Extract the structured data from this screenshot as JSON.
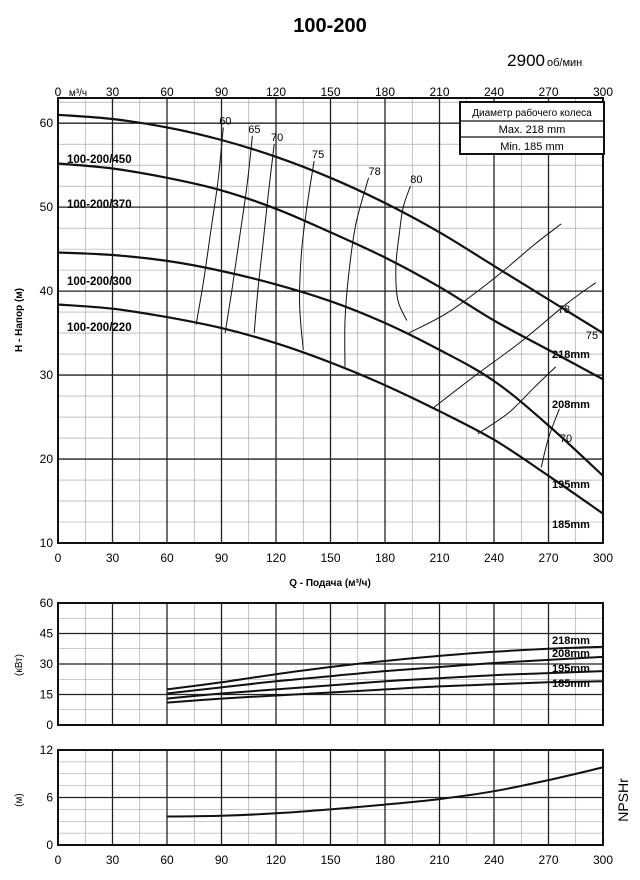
{
  "title": "100-200",
  "speed_label": "2900",
  "speed_unit": "об/мин",
  "legend_box": {
    "heading": "Диаметр рабочего колеса",
    "max": "Max. 218 mm",
    "min": "Min.  185 mm"
  },
  "top_axis_unit": "м³/ч",
  "x_axis_label": "Q - Подача (м³/ч)",
  "head_axis_label": "H - Напор (м)",
  "power_axis_label": "(кВт)",
  "npsh_axis_label": "(м)",
  "npsh_side_label": "NPSHr",
  "colors": {
    "line": "#111111",
    "grid": "#222222",
    "minor_grid": "#9a9a9a",
    "background": "#ffffff"
  },
  "chart_data": [
    {
      "type": "line",
      "name": "head",
      "x_ticks": [
        0,
        30,
        60,
        90,
        120,
        150,
        180,
        210,
        240,
        270,
        300
      ],
      "y_ticks": [
        10,
        20,
        30,
        40,
        50,
        60
      ],
      "xlim": [
        0,
        300
      ],
      "ylim": [
        10,
        63
      ],
      "grid": true,
      "series": [
        {
          "name": "218mm",
          "x": [
            0,
            30,
            60,
            90,
            120,
            150,
            180,
            210,
            240,
            270,
            300
          ],
          "y": [
            61,
            60.5,
            59.5,
            58,
            56,
            53.5,
            50.5,
            47,
            43,
            39,
            35
          ]
        },
        {
          "name": "208mm",
          "x": [
            0,
            30,
            60,
            90,
            120,
            150,
            180,
            210,
            240,
            270,
            300
          ],
          "y": [
            55.2,
            54.6,
            53.5,
            52,
            49.8,
            47,
            44,
            40.5,
            36.5,
            33,
            29.5
          ]
        },
        {
          "name": "195mm",
          "x": [
            0,
            30,
            60,
            90,
            120,
            150,
            180,
            210,
            240,
            270,
            300
          ],
          "y": [
            44.6,
            44.3,
            43.6,
            42.4,
            40.8,
            38.8,
            36.2,
            33,
            29.3,
            24,
            18
          ]
        },
        {
          "name": "185mm",
          "x": [
            0,
            30,
            60,
            90,
            120,
            150,
            180,
            210,
            240,
            270,
            300
          ],
          "y": [
            38.4,
            37.9,
            36.9,
            35.6,
            33.8,
            31.5,
            28.8,
            25.7,
            22.3,
            18,
            13.5
          ]
        }
      ],
      "impeller_labels": [
        "100-200/450",
        "100-200/370",
        "100-200/300",
        "100-200/220"
      ],
      "diameter_labels": [
        "218mm",
        "208mm",
        "195mm",
        "185mm"
      ],
      "efficiency_curves": [
        {
          "label": "60",
          "x": [
            76,
            80,
            84,
            88,
            91
          ],
          "y": [
            36,
            41,
            47,
            53,
            59.5
          ]
        },
        {
          "label": "65",
          "x": [
            92,
            96,
            100,
            104,
            107
          ],
          "y": [
            35,
            40.5,
            46.5,
            52.5,
            58.5
          ]
        },
        {
          "label": "70",
          "x": [
            108,
            110,
            113,
            116,
            119
          ],
          "y": [
            35,
            40,
            46,
            52,
            57.5
          ]
        },
        {
          "label": "75",
          "x": [
            135,
            133,
            134,
            137,
            141
          ],
          "y": [
            33,
            38.5,
            44.5,
            50,
            55.5
          ]
        },
        {
          "label": "78",
          "x": [
            158,
            158,
            160,
            164,
            171
          ],
          "y": [
            31,
            36.5,
            42,
            48,
            53.5
          ]
        },
        {
          "label": "80",
          "x": [
            192,
            187,
            186,
            188,
            190,
            194
          ],
          "y": [
            36.5,
            39,
            43,
            47,
            50,
            52.5
          ]
        },
        {
          "label": "78",
          "x": [
            193,
            215,
            240,
            262,
            277
          ],
          "y": [
            35,
            37.5,
            41.5,
            45.5,
            48
          ]
        },
        {
          "label": "75",
          "x": [
            206,
            230,
            255,
            280,
            296
          ],
          "y": [
            26,
            30,
            34,
            38.5,
            41
          ]
        },
        {
          "label": "70",
          "x": [
            231,
            248,
            262,
            274
          ],
          "y": [
            23,
            25.5,
            28.5,
            31
          ]
        },
        {
          "label": "70",
          "x": [
            266,
            270,
            276
          ],
          "y": [
            19,
            22.5,
            26
          ]
        }
      ],
      "efficiency_labels": [
        "60",
        "65",
        "70",
        "75",
        "78",
        "80",
        "78",
        "75",
        "70"
      ]
    },
    {
      "type": "line",
      "name": "power",
      "y_ticks": [
        0,
        15,
        30,
        45,
        60
      ],
      "xlim": [
        0,
        300
      ],
      "ylim": [
        0,
        60
      ],
      "grid": true,
      "series": [
        {
          "name": "218mm",
          "x": [
            60,
            90,
            120,
            150,
            180,
            210,
            240,
            270,
            300
          ],
          "y": [
            17.5,
            21,
            25,
            28.5,
            31.5,
            34,
            36,
            37.5,
            38.5
          ]
        },
        {
          "name": "208mm",
          "x": [
            60,
            90,
            120,
            150,
            180,
            210,
            240,
            270,
            300
          ],
          "y": [
            15.5,
            18.5,
            21.5,
            24,
            26.5,
            28.5,
            30.5,
            32,
            33.5
          ]
        },
        {
          "name": "195mm",
          "x": [
            60,
            90,
            120,
            150,
            180,
            210,
            240,
            270,
            300
          ],
          "y": [
            13,
            15.5,
            17.5,
            19.5,
            21.5,
            23,
            24.5,
            25.5,
            26.5
          ]
        },
        {
          "name": "185mm",
          "x": [
            60,
            90,
            120,
            150,
            180,
            210,
            240,
            270,
            300
          ],
          "y": [
            11,
            13,
            14.5,
            16,
            17.5,
            19,
            20,
            21,
            21.5
          ]
        }
      ]
    },
    {
      "type": "line",
      "name": "npshr",
      "y_ticks": [
        0,
        6,
        12
      ],
      "xlim": [
        0,
        300
      ],
      "ylim": [
        0,
        12
      ],
      "grid": true,
      "series": [
        {
          "name": "NPSHr",
          "x": [
            60,
            90,
            120,
            150,
            180,
            210,
            240,
            270,
            300
          ],
          "y": [
            3.6,
            3.7,
            4.0,
            4.5,
            5.1,
            5.8,
            6.8,
            8.2,
            9.8
          ]
        }
      ]
    }
  ]
}
